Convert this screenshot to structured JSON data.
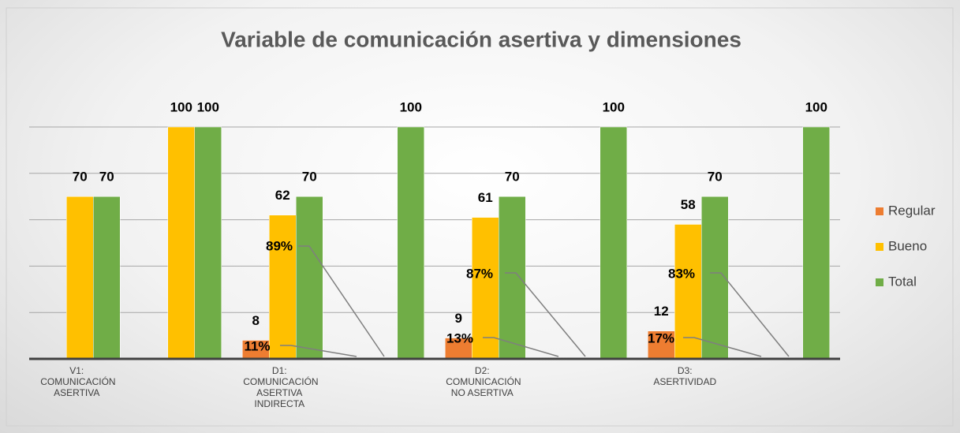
{
  "chart_data": {
    "type": "bar",
    "title": "Variable de comunicación asertiva y dimensiones",
    "categories": [
      "V1: COMUNICACIÓN ASERTIVA",
      null,
      "D1: COMUNICACIÓN ASERTIVA INDIRECTA",
      null,
      "D2: COMUNICACIÓN NO ASERTIVA",
      null,
      "D3: ASERTIVIDAD",
      null
    ],
    "series": [
      {
        "name": "Regular",
        "color": "#ed7d31",
        "values": [
          null,
          null,
          8,
          null,
          9,
          null,
          12,
          null
        ]
      },
      {
        "name": "Bueno",
        "color": "#ffc000",
        "values": [
          70,
          100,
          62,
          null,
          61,
          null,
          58,
          null
        ]
      },
      {
        "name": "Total",
        "color": "#70ad47",
        "values": [
          70,
          100,
          70,
          100,
          70,
          100,
          70,
          100
        ]
      }
    ],
    "annotations": [
      "89%",
      "11%",
      "87%",
      "13%",
      "83%",
      "17%"
    ],
    "ylim": [
      0,
      100
    ],
    "yticks": [
      0,
      20,
      40,
      60,
      80,
      100
    ],
    "grid": true,
    "legend": "right"
  }
}
